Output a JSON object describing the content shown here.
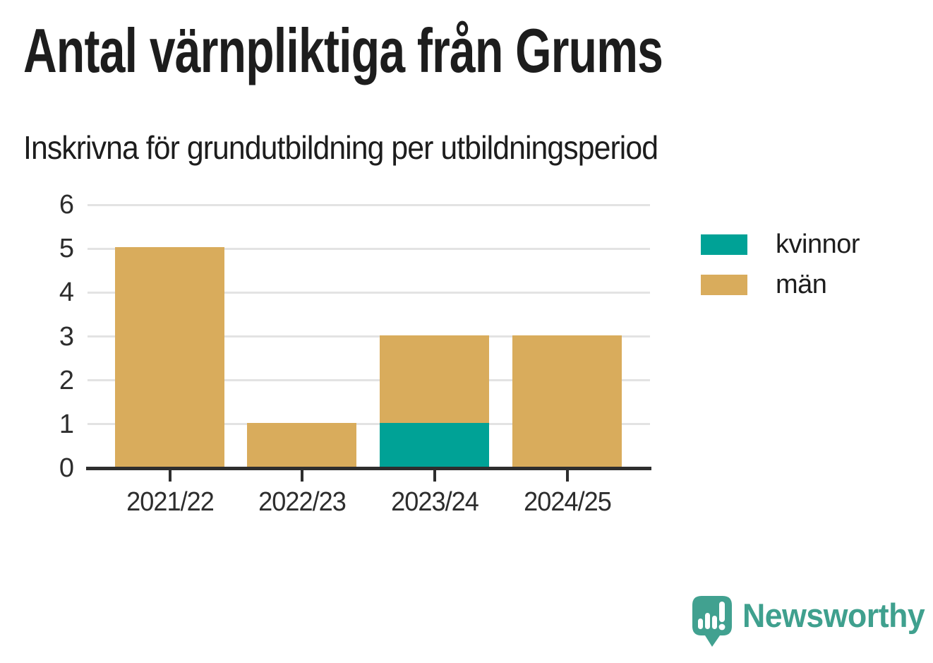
{
  "title": "Antal värnpliktiga från Grums",
  "subtitle": "Inskrivna för grundutbildning per utbildningsperiod",
  "chart_data": {
    "type": "bar",
    "stacked": true,
    "title": "Antal värnpliktiga från Grums",
    "subtitle": "Inskrivna för grundutbildning per utbildningsperiod",
    "categories": [
      "2021/22",
      "2022/23",
      "2023/24",
      "2024/25"
    ],
    "series": [
      {
        "name": "kvinnor",
        "color": "#00a296",
        "values": [
          0,
          0,
          1,
          0
        ]
      },
      {
        "name": "män",
        "color": "#d9ac5c",
        "values": [
          5,
          1,
          2,
          3
        ]
      }
    ],
    "xlabel": "",
    "ylabel": "",
    "ylim": [
      0,
      6
    ],
    "yticks": [
      0,
      1,
      2,
      3,
      4,
      5,
      6
    ],
    "grid": true,
    "legend_position": "right",
    "totals_by_category": [
      5,
      1,
      3,
      3
    ]
  },
  "legend": {
    "items": [
      {
        "label": "kvinnor",
        "color": "#00a296"
      },
      {
        "label": "män",
        "color": "#d9ac5c"
      }
    ]
  },
  "branding": {
    "logo_text": "Newsworthy",
    "logo_color": "#3fa08e"
  },
  "colors": {
    "teal": "#00a296",
    "gold": "#d9ac5c",
    "grid": "#e3e3e3",
    "axis": "#2e2e2e",
    "text": "#1d1d1d"
  }
}
